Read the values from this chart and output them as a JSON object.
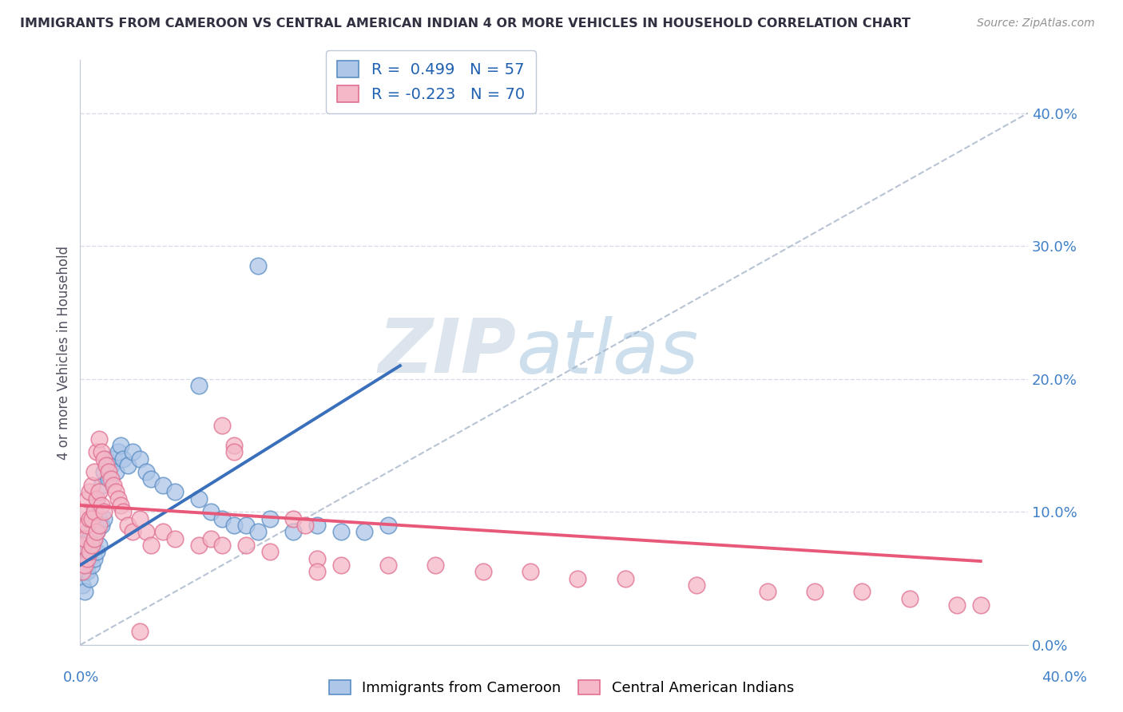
{
  "title": "IMMIGRANTS FROM CAMEROON VS CENTRAL AMERICAN INDIAN 4 OR MORE VEHICLES IN HOUSEHOLD CORRELATION CHART",
  "source": "Source: ZipAtlas.com",
  "ylabel": "4 or more Vehicles in Household",
  "ytick_vals": [
    0.0,
    0.1,
    0.2,
    0.3,
    0.4
  ],
  "ytick_labels": [
    "0.0%",
    "10.0%",
    "20.0%",
    "30.0%",
    "40.0%"
  ],
  "xlim": [
    0.0,
    0.4
  ],
  "ylim": [
    0.0,
    0.44
  ],
  "legend_blue_label": "R =  0.499   N = 57",
  "legend_pink_label": "R = -0.223   N = 70",
  "blue_fill": "#aec6e8",
  "blue_edge": "#5b8ec4",
  "pink_fill": "#f4b8c8",
  "pink_edge": "#e07090",
  "blue_line_color": "#3a6fbc",
  "pink_line_color": "#e85878",
  "dashed_line_color": "#b8c4d4",
  "watermark_zip": "ZIP",
  "watermark_atlas": "atlas",
  "bg_color": "#ffffff",
  "grid_color": "#d8dce8",
  "blue_line_x": [
    0.0,
    0.135
  ],
  "blue_line_y": [
    0.06,
    0.21
  ],
  "pink_line_x": [
    0.0,
    0.38
  ],
  "pink_line_y": [
    0.105,
    0.063
  ],
  "dashed_line_x": [
    0.0,
    0.4
  ],
  "dashed_line_y": [
    0.0,
    0.4
  ],
  "blue_x": [
    0.001,
    0.001,
    0.001,
    0.002,
    0.002,
    0.002,
    0.002,
    0.003,
    0.003,
    0.003,
    0.004,
    0.004,
    0.004,
    0.005,
    0.005,
    0.005,
    0.006,
    0.006,
    0.006,
    0.007,
    0.007,
    0.007,
    0.008,
    0.008,
    0.009,
    0.009,
    0.01,
    0.01,
    0.011,
    0.012,
    0.013,
    0.014,
    0.015,
    0.016,
    0.017,
    0.018,
    0.02,
    0.022,
    0.025,
    0.028,
    0.03,
    0.035,
    0.04,
    0.05,
    0.055,
    0.06,
    0.065,
    0.07,
    0.075,
    0.08,
    0.09,
    0.1,
    0.11,
    0.12,
    0.13,
    0.075,
    0.05
  ],
  "blue_y": [
    0.065,
    0.055,
    0.045,
    0.075,
    0.065,
    0.055,
    0.04,
    0.085,
    0.07,
    0.055,
    0.08,
    0.065,
    0.05,
    0.095,
    0.075,
    0.06,
    0.1,
    0.08,
    0.065,
    0.11,
    0.085,
    0.07,
    0.095,
    0.075,
    0.12,
    0.09,
    0.13,
    0.095,
    0.14,
    0.125,
    0.135,
    0.14,
    0.13,
    0.145,
    0.15,
    0.14,
    0.135,
    0.145,
    0.14,
    0.13,
    0.125,
    0.12,
    0.115,
    0.11,
    0.1,
    0.095,
    0.09,
    0.09,
    0.085,
    0.095,
    0.085,
    0.09,
    0.085,
    0.085,
    0.09,
    0.285,
    0.195
  ],
  "pink_x": [
    0.001,
    0.001,
    0.001,
    0.002,
    0.002,
    0.002,
    0.003,
    0.003,
    0.003,
    0.004,
    0.004,
    0.004,
    0.005,
    0.005,
    0.005,
    0.006,
    0.006,
    0.006,
    0.007,
    0.007,
    0.007,
    0.008,
    0.008,
    0.008,
    0.009,
    0.009,
    0.01,
    0.01,
    0.011,
    0.012,
    0.013,
    0.014,
    0.015,
    0.016,
    0.017,
    0.018,
    0.02,
    0.022,
    0.025,
    0.028,
    0.03,
    0.035,
    0.04,
    0.05,
    0.055,
    0.06,
    0.07,
    0.08,
    0.09,
    0.1,
    0.11,
    0.13,
    0.15,
    0.17,
    0.19,
    0.21,
    0.23,
    0.26,
    0.29,
    0.31,
    0.33,
    0.35,
    0.37,
    0.38,
    0.06,
    0.065,
    0.095,
    0.1,
    0.065,
    0.025
  ],
  "pink_y": [
    0.09,
    0.075,
    0.055,
    0.1,
    0.08,
    0.06,
    0.11,
    0.09,
    0.065,
    0.115,
    0.095,
    0.07,
    0.12,
    0.095,
    0.075,
    0.13,
    0.1,
    0.08,
    0.145,
    0.11,
    0.085,
    0.155,
    0.115,
    0.09,
    0.145,
    0.105,
    0.14,
    0.1,
    0.135,
    0.13,
    0.125,
    0.12,
    0.115,
    0.11,
    0.105,
    0.1,
    0.09,
    0.085,
    0.095,
    0.085,
    0.075,
    0.085,
    0.08,
    0.075,
    0.08,
    0.075,
    0.075,
    0.07,
    0.095,
    0.065,
    0.06,
    0.06,
    0.06,
    0.055,
    0.055,
    0.05,
    0.05,
    0.045,
    0.04,
    0.04,
    0.04,
    0.035,
    0.03,
    0.03,
    0.165,
    0.15,
    0.09,
    0.055,
    0.145,
    0.01
  ]
}
